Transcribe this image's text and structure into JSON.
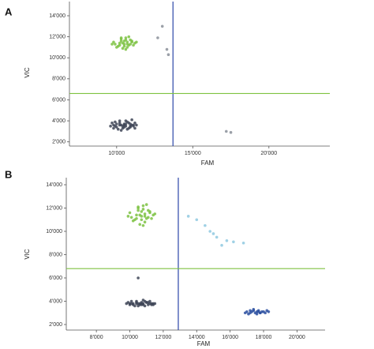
{
  "chart_data": [
    {
      "type": "scatter",
      "panel_label": "A",
      "xlabel": "FAM",
      "ylabel": "VIC",
      "xlim": [
        6900,
        24000
      ],
      "ylim": [
        1600,
        15350
      ],
      "xticks": [
        {
          "value": 10000,
          "label": "10'000"
        },
        {
          "value": 15000,
          "label": "15'000"
        },
        {
          "value": 20000,
          "label": "20'000"
        }
      ],
      "yticks": [
        {
          "value": 2000,
          "label": "2'000"
        },
        {
          "value": 4000,
          "label": "4'000"
        },
        {
          "value": 6000,
          "label": "6'000"
        },
        {
          "value": 8000,
          "label": "8'000"
        },
        {
          "value": 10000,
          "label": "10'000"
        },
        {
          "value": 12000,
          "label": "12'000"
        },
        {
          "value": 14000,
          "label": "14'000"
        }
      ],
      "vline": {
        "value": 13700,
        "color": "#2b45a8"
      },
      "hline": {
        "value": 6600,
        "color": "#7fc241"
      },
      "series": [
        {
          "color": "#7dc242",
          "x": [
            10200,
            10500,
            10800,
            11000,
            9900,
            10300,
            10700,
            11200,
            10600,
            10400,
            10900,
            10100,
            9800,
            10500,
            11100,
            10300,
            10700,
            10000,
            10600,
            10900,
            11300,
            10200,
            10800,
            10400,
            9700,
            10600,
            11000,
            10300,
            10500,
            10700
          ],
          "y": [
            11400,
            11600,
            11200,
            11500,
            11300,
            11800,
            11000,
            11400,
            11900,
            10900,
            11700,
            11100,
            11500,
            11300,
            11200,
            11600,
            11500,
            11000,
            11700,
            11300,
            11500,
            11200,
            12000,
            11400,
            11300,
            10800,
            11600,
            11900,
            11100,
            11300
          ]
        },
        {
          "color": "#3d4456",
          "x": [
            9800,
            10000,
            10200,
            10400,
            10600,
            10800,
            11000,
            11200,
            9900,
            10100,
            10300,
            10500,
            10700,
            10900,
            11100,
            9700,
            10000,
            10300,
            10600,
            10900,
            11200,
            9800,
            10200,
            10500,
            10800,
            11100,
            9900,
            10400,
            10700,
            11000,
            10200,
            10600,
            11300,
            9600,
            10500,
            10900
          ],
          "y": [
            3600,
            3400,
            3800,
            3500,
            3700,
            3300,
            3600,
            3800,
            3900,
            3200,
            3600,
            3400,
            3900,
            3700,
            3500,
            3800,
            3700,
            3100,
            3500,
            3400,
            3300,
            3300,
            4000,
            3600,
            3800,
            3600,
            3500,
            3300,
            3200,
            4100,
            3600,
            4000,
            3600,
            3500,
            3700,
            3500
          ]
        },
        {
          "color": "#8a8f99",
          "x": [
            12700,
            13000,
            13300,
            13400,
            17200,
            17500
          ],
          "y": [
            11900,
            13000,
            10800,
            10300,
            3000,
            2900
          ]
        }
      ]
    },
    {
      "type": "scatter",
      "panel_label": "B",
      "xlabel": "FAM",
      "ylabel": "VIC",
      "xlim": [
        6200,
        21680
      ],
      "ylim": [
        1525,
        14610
      ],
      "xticks": [
        {
          "value": 8000,
          "label": "8'000"
        },
        {
          "value": 10000,
          "label": "10'000"
        },
        {
          "value": 12000,
          "label": "12'000"
        },
        {
          "value": 14000,
          "label": "14'000"
        },
        {
          "value": 16000,
          "label": "16'000"
        },
        {
          "value": 18000,
          "label": "18'000"
        },
        {
          "value": 20000,
          "label": "20'000"
        }
      ],
      "yticks": [
        {
          "value": 2000,
          "label": "2'000"
        },
        {
          "value": 4000,
          "label": "4'000"
        },
        {
          "value": 6000,
          "label": "6'000"
        },
        {
          "value": 8000,
          "label": "8'000"
        },
        {
          "value": 10000,
          "label": "10'000"
        },
        {
          "value": 12000,
          "label": "12'000"
        },
        {
          "value": 14000,
          "label": "14'000"
        }
      ],
      "vline": {
        "value": 12900,
        "color": "#2b45a8"
      },
      "hline": {
        "value": 6800,
        "color": "#7fc241"
      },
      "series": [
        {
          "color": "#7dc242",
          "x": [
            10400,
            10700,
            11000,
            11200,
            10100,
            10500,
            10900,
            11400,
            10800,
            10600,
            11100,
            10300,
            10000,
            10700,
            11300,
            10500,
            10900,
            10200,
            10800,
            11100,
            11500,
            10400,
            11000,
            10600,
            9900,
            10800,
            11200,
            10500,
            10700,
            10900
          ],
          "y": [
            11400,
            11700,
            11100,
            11600,
            11200,
            12000,
            10800,
            11400,
            12200,
            10600,
            11800,
            11000,
            11600,
            11300,
            11100,
            11800,
            11500,
            10900,
            11900,
            11200,
            11500,
            11100,
            12300,
            11400,
            11300,
            10500,
            11700,
            12100,
            11000,
            11300
          ]
        },
        {
          "color": "#3d4456",
          "x": [
            10000,
            10200,
            10400,
            10600,
            10800,
            11000,
            11200,
            11400,
            10100,
            10300,
            10500,
            10700,
            10900,
            11100,
            11300,
            9900,
            10200,
            10500,
            10800,
            11100,
            11400,
            10000,
            10400,
            10700,
            11000,
            11300,
            10100,
            10600,
            10900,
            11200,
            10400,
            10800,
            11500,
            9800,
            10700,
            10500
          ],
          "y": [
            3800,
            3700,
            3900,
            3800,
            3700,
            3900,
            3800,
            3700,
            4000,
            3600,
            3800,
            3700,
            4000,
            3900,
            3800,
            3900,
            3800,
            3600,
            3800,
            3700,
            3800,
            3700,
            4000,
            3800,
            3900,
            3700,
            3800,
            3700,
            3600,
            4000,
            3800,
            4100,
            3800,
            3800,
            3900,
            6000
          ]
        },
        {
          "color": "#2a4fa0",
          "x": [
            17000,
            17200,
            17400,
            17600,
            17800,
            18000,
            18200,
            17100,
            17300,
            17500,
            17700,
            17900,
            18100,
            16900,
            17600,
            17400,
            17800,
            18300,
            17200,
            17700
          ],
          "y": [
            3100,
            3000,
            3200,
            3100,
            3000,
            3100,
            3200,
            2900,
            3100,
            3000,
            3200,
            3100,
            3000,
            3000,
            2900,
            3300,
            3000,
            3100,
            3200,
            3100
          ]
        },
        {
          "color": "#8fc9e0",
          "x": [
            14000,
            14500,
            15000,
            15200,
            15500,
            15800,
            16200,
            16800,
            14800,
            13500
          ],
          "y": [
            11000,
            10500,
            9800,
            9500,
            8800,
            9200,
            9100,
            9000,
            10000,
            11300
          ]
        }
      ]
    }
  ]
}
